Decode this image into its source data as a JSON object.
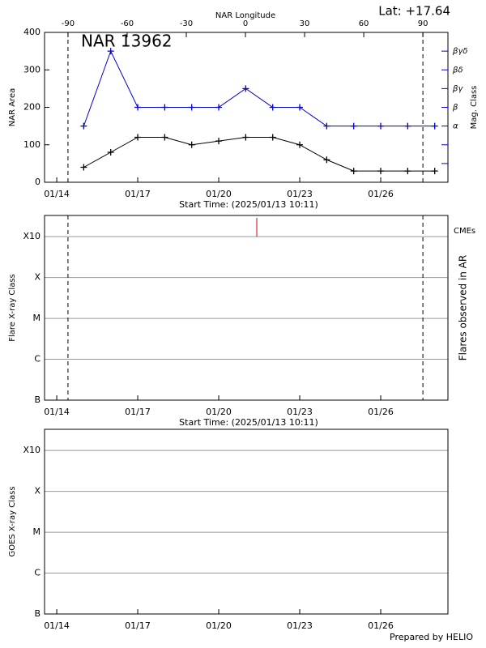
{
  "chart_data": [
    {
      "type": "line",
      "title": "NAR 13962",
      "annotation": "Lat: +17.64",
      "x_label": "Start Time: (2025/01/13 10:11)",
      "y_label": "NAR Area",
      "y2_label": "Mag. Class",
      "x2_label": "NAR Longitude",
      "x": [
        "2025-01-15",
        "2025-01-16",
        "2025-01-17",
        "2025-01-18",
        "2025-01-19",
        "2025-01-20",
        "2025-01-21",
        "2025-01-22",
        "2025-01-23",
        "2025-01-24",
        "2025-01-25",
        "2025-01-26",
        "2025-01-27",
        "2025-01-28"
      ],
      "xlim": [
        "2025-01-13T13:10",
        "2025-01-28T11:45"
      ],
      "xticks": [
        {
          "value": "2025-01-14",
          "label": "01/14"
        },
        {
          "value": "2025-01-17",
          "label": "01/17"
        },
        {
          "value": "2025-01-20",
          "label": "01/20"
        },
        {
          "value": "2025-01-23",
          "label": "01/23"
        },
        {
          "value": "2025-01-26",
          "label": "01/26"
        }
      ],
      "x2lim": [
        -101.9,
        102.7
      ],
      "x2ticks": [
        -90,
        -60,
        -30,
        0,
        30,
        60,
        90
      ],
      "limb_times": [
        "2025-01-14T10:00",
        "2025-01-27T13:30"
      ],
      "ylim": [
        0,
        400
      ],
      "yticks": [
        0,
        100,
        200,
        300,
        400
      ],
      "y2lim": [
        0,
        8
      ],
      "y2_color": "#0000cc",
      "y2ticks": [
        {
          "value": 1,
          "label": null
        },
        {
          "value": 2,
          "label": null
        },
        {
          "value": 3,
          "label": "α"
        },
        {
          "value": 4,
          "label": "β"
        },
        {
          "value": 5,
          "label": "βγ"
        },
        {
          "value": 6,
          "label": "βδ"
        },
        {
          "value": 7,
          "label": "βγδ"
        }
      ],
      "series": [
        {
          "color": "#000000",
          "values": [
            40,
            80,
            120,
            120,
            100,
            110,
            120,
            120,
            100,
            60,
            30,
            30,
            30,
            30
          ]
        },
        {
          "color": "#0000cc",
          "axis": "y2",
          "values": [
            3,
            7,
            4,
            4,
            4,
            4,
            5,
            4,
            4,
            3,
            3,
            3,
            3,
            3
          ]
        }
      ]
    },
    {
      "type": "event",
      "x_label": "Start Time: (2025/01/13 10:11)",
      "y_label": "Flare X-ray Class",
      "y2_label": "Flares observed in AR",
      "xlim": [
        "2025-01-13T13:10",
        "2025-01-28T11:45"
      ],
      "xticks": [
        {
          "value": "2025-01-14",
          "label": "01/14"
        },
        {
          "value": "2025-01-17",
          "label": "01/17"
        },
        {
          "value": "2025-01-20",
          "label": "01/20"
        },
        {
          "value": "2025-01-23",
          "label": "01/23"
        },
        {
          "value": "2025-01-26",
          "label": "01/26"
        }
      ],
      "limb_times": [
        "2025-01-14T10:00",
        "2025-01-27T13:30"
      ],
      "log": true,
      "grid": true,
      "ylim": [
        1e-07,
        0.0033
      ],
      "yticks": [
        {
          "value": 1e-07,
          "label": "B"
        },
        {
          "value": 1e-06,
          "label": "C"
        },
        {
          "value": 1e-05,
          "label": "M"
        },
        {
          "value": 0.0001,
          "label": "X"
        },
        {
          "value": 0.001,
          "label": "X10"
        }
      ],
      "events": {
        "name": "CMEs",
        "color": "#dd0000",
        "x": [
          "2025-01-21T09:50"
        ]
      }
    },
    {
      "type": "line",
      "y_label": "GOES X-ray Class",
      "xlim": [
        "2025-01-13T13:10",
        "2025-01-28T11:45"
      ],
      "xticks": [
        {
          "value": "2025-01-14",
          "label": "01/14"
        },
        {
          "value": "2025-01-17",
          "label": "01/17"
        },
        {
          "value": "2025-01-20",
          "label": "01/20"
        },
        {
          "value": "2025-01-23",
          "label": "01/23"
        },
        {
          "value": "2025-01-26",
          "label": "01/26"
        }
      ],
      "log": true,
      "grid": true,
      "ylim": [
        1e-07,
        0.0033
      ],
      "yticks": [
        {
          "value": 1e-07,
          "label": "B"
        },
        {
          "value": 1e-06,
          "label": "C"
        },
        {
          "value": 1e-05,
          "label": "M"
        },
        {
          "value": 0.0001,
          "label": "X"
        },
        {
          "value": 0.001,
          "label": "X10"
        }
      ],
      "series": []
    }
  ],
  "footer": "Prepared by HELIO"
}
